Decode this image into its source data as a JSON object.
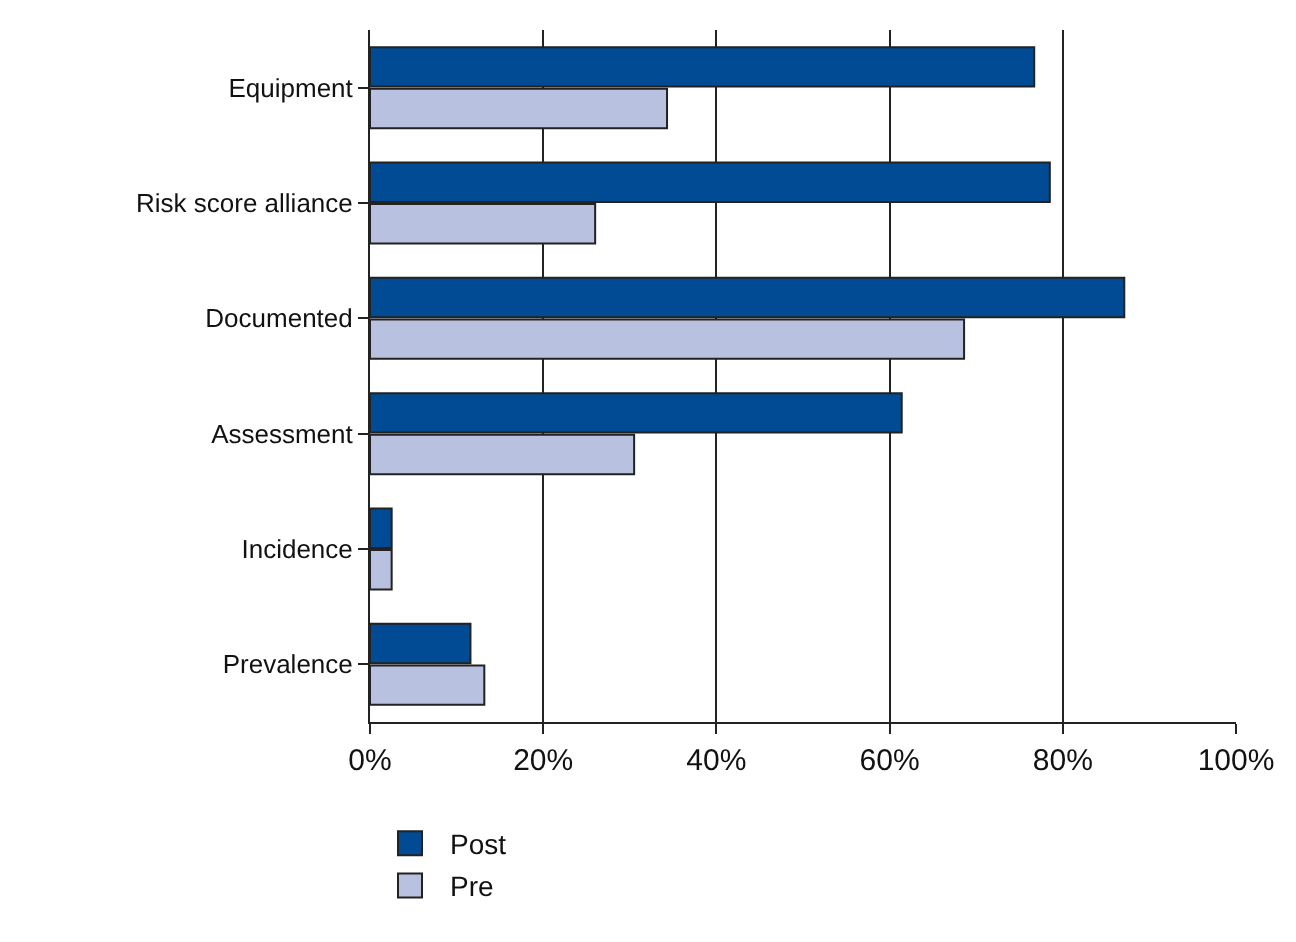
{
  "chart_data": {
    "type": "bar",
    "orientation": "horizontal",
    "categories": [
      "Equipment",
      "Risk score alliance",
      "Documented",
      "Assessment",
      "Incidence",
      "Prevalence"
    ],
    "series": [
      {
        "name": "Post",
        "color": "#004b93",
        "values": [
          76.7,
          78.5,
          87.1,
          61.4,
          2.5,
          11.6
        ]
      },
      {
        "name": "Pre",
        "color": "#b8c1df",
        "values": [
          34.3,
          26.0,
          68.6,
          30.5,
          2.5,
          13.2
        ]
      }
    ],
    "xlim": [
      0,
      100
    ],
    "xticks": [
      {
        "value": 0,
        "label": "0%"
      },
      {
        "value": 20,
        "label": "20%"
      },
      {
        "value": 40,
        "label": "40%"
      },
      {
        "value": 60,
        "label": "60%"
      },
      {
        "value": 80,
        "label": "80%"
      },
      {
        "value": 100,
        "label": "100%"
      }
    ],
    "grid": "x",
    "legend": "bottom"
  }
}
